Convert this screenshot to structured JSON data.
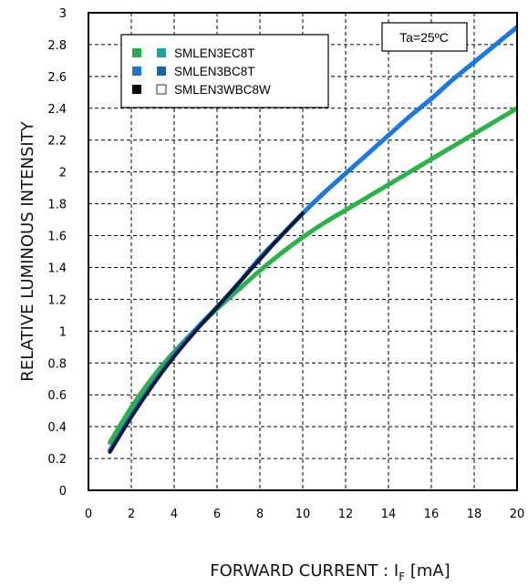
{
  "chart_data": {
    "type": "line",
    "xlabel_main": "FORWARD CURRENT : I",
    "xlabel_sub": "F",
    "xlabel_unit": " [mA]",
    "ylabel": "RELATIVE LUMINOUS INTENSITY",
    "xlim": [
      0,
      20
    ],
    "ylim": [
      0,
      3
    ],
    "xticks": [
      "0",
      "2",
      "4",
      "6",
      "8",
      "10",
      "12",
      "14",
      "16",
      "18",
      "20"
    ],
    "yticks": [
      "0",
      "0.2",
      "0.4",
      "0.6",
      "0.8",
      "1",
      "1.2",
      "1.4",
      "1.6",
      "1.8",
      "2",
      "2.2",
      "2.4",
      "2.6",
      "2.8",
      "3"
    ],
    "grid": true,
    "annotation": "Ta=25ºC",
    "legend": [
      {
        "label": "SMLEN3EC8T",
        "marker1": "#22b04b",
        "marker1_fill": true,
        "marker2": "#1ea39a",
        "marker2_fill": true
      },
      {
        "label": "SMLEN3BC8T",
        "marker1": "#1f74c8",
        "marker1_fill": true,
        "marker2": "#1666b0",
        "marker2_fill": true
      },
      {
        "label": "SMLEN3WBC8W",
        "marker1": "#000000",
        "marker1_fill": true,
        "marker2": "#333333",
        "marker2_fill": false
      }
    ],
    "series": [
      {
        "name": "SMLEN3EC8T",
        "color": "#2bb24b",
        "x": [
          1,
          2,
          3,
          4,
          5,
          6,
          7,
          8,
          9,
          10,
          11,
          12,
          13,
          14,
          15,
          16,
          17,
          18,
          19,
          20
        ],
        "y": [
          0.3,
          0.52,
          0.71,
          0.87,
          1.01,
          1.14,
          1.26,
          1.38,
          1.49,
          1.59,
          1.68,
          1.76,
          1.84,
          1.92,
          2.0,
          2.08,
          2.16,
          2.24,
          2.32,
          2.4
        ]
      },
      {
        "name": "SMLEN3BC8T",
        "color": "#1a78e0",
        "x": [
          1,
          2,
          3,
          4,
          5,
          6,
          7,
          8,
          9,
          10,
          11,
          12,
          13,
          14,
          15,
          16,
          17,
          18,
          19,
          20
        ],
        "y": [
          0.25,
          0.47,
          0.67,
          0.85,
          1.01,
          1.15,
          1.3,
          1.46,
          1.6,
          1.74,
          1.87,
          1.99,
          2.11,
          2.23,
          2.35,
          2.46,
          2.58,
          2.69,
          2.8,
          2.91
        ]
      },
      {
        "name": "SMLEN3WBC8W",
        "color": "#0d1a33",
        "x": [
          1,
          2,
          3,
          4,
          5,
          6,
          7,
          8,
          9,
          10
        ],
        "y": [
          0.24,
          0.46,
          0.66,
          0.84,
          1.0,
          1.15,
          1.3,
          1.45,
          1.6,
          1.74
        ]
      }
    ]
  }
}
